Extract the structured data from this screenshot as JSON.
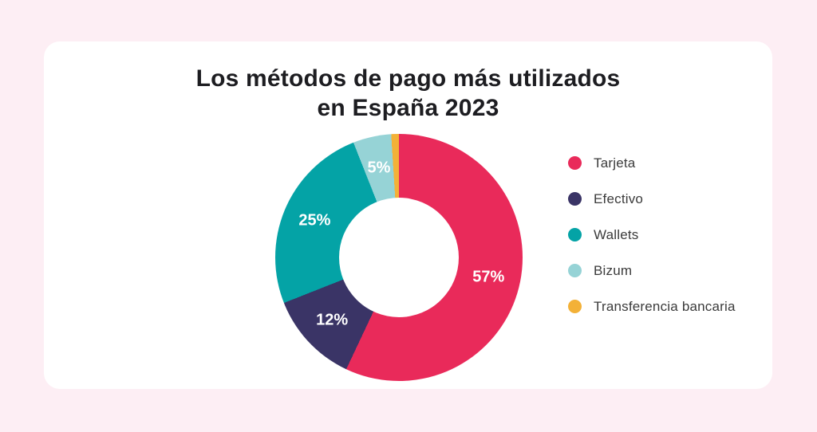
{
  "page": {
    "background_color": "#FDEEF4",
    "card_color": "#FFFFFF"
  },
  "title": {
    "full": "Los métodos de pago más utilizados en España 2023",
    "line1": "Los métodos de pago más utilizados",
    "line2": "en España 2023",
    "color": "#1D1D21"
  },
  "legend": {
    "text_color": "#3B3B3B",
    "position": "right"
  },
  "chart_data": {
    "type": "pie",
    "subtype": "donut",
    "title": "Los métodos de pago más utilizados en España 2023",
    "categories": [
      "Tarjeta",
      "Efectivo",
      "Wallets",
      "Bizum",
      "Transferencia bancaria"
    ],
    "values": [
      57,
      12,
      25,
      5,
      1
    ],
    "unit": "%",
    "start_angle_deg": 0,
    "direction": "clockwise",
    "inner_radius_ratio": 0.48,
    "label_radius_ratio": 0.371,
    "legend_position": "right",
    "slices": [
      {
        "name": "Tarjeta",
        "value": 57,
        "label": "57%",
        "color": "#E92A5A",
        "show_label": true
      },
      {
        "name": "Efectivo",
        "value": 12,
        "label": "12%",
        "color": "#3A3466",
        "show_label": true
      },
      {
        "name": "Wallets",
        "value": 25,
        "label": "25%",
        "color": "#04A3A6",
        "show_label": true
      },
      {
        "name": "Bizum",
        "value": 5,
        "label": "5%",
        "color": "#96D3D6",
        "show_label": true
      },
      {
        "name": "Transferencia bancaria",
        "value": 1,
        "label": "",
        "color": "#F3B137",
        "show_label": false
      }
    ]
  }
}
